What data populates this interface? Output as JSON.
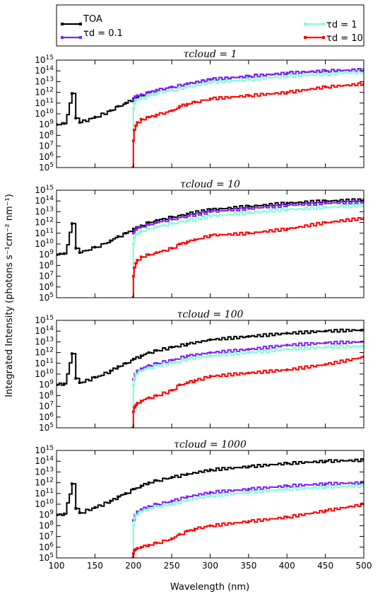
{
  "chart_data": {
    "type": "line",
    "xlabel": "Wavelength (nm)",
    "ylabel": "Integrated Intensity (photons s⁻¹cm⁻² nm⁻¹)",
    "xlim": [
      100,
      500
    ],
    "ylim_exp": [
      5,
      15
    ],
    "y_scale": "log",
    "x_ticks": [
      "100",
      "150",
      "200",
      "250",
      "300",
      "350",
      "400",
      "450",
      "500"
    ],
    "legend": {
      "placement": "top",
      "entries": [
        {
          "label": "TOA",
          "color": "#000000"
        },
        {
          "label": "τd = 0.1",
          "color": "#7f1fff"
        },
        {
          "label": "τd = 1",
          "color": "#7fffd4"
        },
        {
          "label": "τd = 10",
          "color": "#ff0000"
        }
      ]
    },
    "panels": [
      {
        "title": "τcloud = 1",
        "series": [
          {
            "color": "#000000",
            "x": [
              100,
              110,
              120,
              125,
              130,
              150,
              170,
              180,
              190,
              200,
              210,
              220,
              230,
              250,
              270,
              300,
              350,
              400,
              450,
              500
            ],
            "y": [
              9,
              9.1,
              11.9,
              9.6,
              9.2,
              9.7,
              10.3,
              10.7,
              11.0,
              11.4,
              11.7,
              12.0,
              12.2,
              12.5,
              12.8,
              13.2,
              13.5,
              13.8,
              14.0,
              14.1
            ]
          },
          {
            "color": "#7f1fff",
            "x": [
              200,
              202,
              205,
              210,
              220,
              230,
              250,
              270,
              300,
              350,
              400,
              450,
              500
            ],
            "y": [
              11.3,
              11.6,
              11.7,
              11.8,
              12.0,
              12.2,
              12.5,
              12.8,
              13.2,
              13.5,
              13.8,
              14.0,
              14.1
            ]
          },
          {
            "color": "#7fffd4",
            "x": [
              199.5,
              200,
              201,
              203,
              210,
              220,
              230,
              250,
              270,
              300,
              350,
              400,
              450,
              500
            ],
            "y": [
              5,
              10.5,
              11.0,
              11.3,
              11.5,
              11.7,
              11.9,
              12.2,
              12.5,
              12.9,
              13.2,
              13.5,
              13.7,
              13.9
            ]
          },
          {
            "color": "#ff0000",
            "x": [
              199.5,
              200,
              201,
              203,
              205,
              210,
              220,
              230,
              250,
              260,
              270,
              280,
              300,
              350,
              400,
              450,
              500
            ],
            "y": [
              5,
              7.5,
              8.5,
              8.9,
              9.2,
              9.5,
              9.7,
              9.9,
              10.3,
              10.7,
              10.9,
              11.1,
              11.4,
              11.7,
              12.0,
              12.5,
              12.8
            ]
          }
        ]
      },
      {
        "title": "τcloud = 10",
        "series": [
          {
            "color": "#000000",
            "x": [
              100,
              110,
              120,
              125,
              130,
              150,
              170,
              180,
              190,
              200,
              210,
              220,
              230,
              250,
              270,
              300,
              350,
              400,
              450,
              500
            ],
            "y": [
              9,
              9.1,
              11.9,
              9.6,
              9.2,
              9.7,
              10.3,
              10.7,
              11.0,
              11.4,
              11.7,
              12.0,
              12.2,
              12.5,
              12.8,
              13.2,
              13.5,
              13.8,
              14.0,
              14.1
            ]
          },
          {
            "color": "#7f1fff",
            "x": [
              200,
              202,
              205,
              210,
              220,
              230,
              250,
              270,
              300,
              350,
              400,
              450,
              500
            ],
            "y": [
              11.0,
              11.3,
              11.5,
              11.6,
              11.8,
              12.0,
              12.3,
              12.6,
              13.0,
              13.3,
              13.6,
              13.8,
              13.9
            ]
          },
          {
            "color": "#7fffd4",
            "x": [
              199.5,
              200,
              201,
              203,
              210,
              220,
              230,
              250,
              270,
              300,
              350,
              400,
              450,
              500
            ],
            "y": [
              5,
              10.0,
              10.6,
              10.9,
              11.2,
              11.4,
              11.6,
              11.9,
              12.2,
              12.6,
              12.9,
              13.2,
              13.4,
              13.6
            ]
          },
          {
            "color": "#ff0000",
            "x": [
              199.5,
              200,
              201,
              203,
              205,
              210,
              220,
              230,
              250,
              260,
              270,
              280,
              300,
              350,
              400,
              450,
              500
            ],
            "y": [
              5,
              7.0,
              7.8,
              8.2,
              8.5,
              8.8,
              9.0,
              9.2,
              9.6,
              10.0,
              10.2,
              10.4,
              10.8,
              11.0,
              11.4,
              12.0,
              12.4
            ]
          }
        ]
      },
      {
        "title": "τcloud = 100",
        "series": [
          {
            "color": "#000000",
            "x": [
              100,
              110,
              120,
              125,
              130,
              150,
              170,
              180,
              190,
              200,
              210,
              220,
              230,
              250,
              270,
              300,
              350,
              400,
              450,
              500
            ],
            "y": [
              9,
              9.1,
              11.9,
              9.6,
              9.2,
              9.7,
              10.3,
              10.7,
              11.0,
              11.4,
              11.7,
              12.0,
              12.2,
              12.5,
              12.8,
              13.2,
              13.5,
              13.8,
              14.0,
              14.1
            ]
          },
          {
            "color": "#7f1fff",
            "x": [
              200,
              202,
              205,
              210,
              220,
              230,
              250,
              270,
              300,
              350,
              400,
              450,
              500
            ],
            "y": [
              9.5,
              10.0,
              10.3,
              10.5,
              10.8,
              11.0,
              11.3,
              11.7,
              12.0,
              12.3,
              12.7,
              12.9,
              13.0
            ]
          },
          {
            "color": "#7fffd4",
            "x": [
              199.5,
              200,
              201,
              203,
              210,
              220,
              230,
              250,
              270,
              300,
              350,
              400,
              450,
              500
            ],
            "y": [
              5,
              9.0,
              9.6,
              10.0,
              10.3,
              10.6,
              10.8,
              11.0,
              11.4,
              11.7,
              12.0,
              12.3,
              12.5,
              12.6
            ]
          },
          {
            "color": "#ff0000",
            "x": [
              199.5,
              200,
              201,
              203,
              205,
              210,
              220,
              230,
              250,
              260,
              270,
              280,
              300,
              350,
              400,
              450,
              500
            ],
            "y": [
              5,
              6.5,
              6.9,
              7.1,
              7.3,
              7.5,
              7.8,
              8.0,
              8.5,
              9.0,
              9.2,
              9.4,
              9.8,
              10.1,
              10.4,
              10.9,
              11.6
            ]
          }
        ]
      },
      {
        "title": "τcloud = 1000",
        "series": [
          {
            "color": "#000000",
            "x": [
              100,
              110,
              120,
              125,
              130,
              150,
              170,
              180,
              190,
              200,
              210,
              220,
              230,
              250,
              270,
              300,
              350,
              400,
              450,
              500
            ],
            "y": [
              9,
              9.1,
              11.9,
              9.6,
              9.2,
              9.7,
              10.3,
              10.7,
              11.0,
              11.4,
              11.7,
              12.0,
              12.2,
              12.5,
              12.8,
              13.2,
              13.5,
              13.8,
              14.0,
              14.1
            ]
          },
          {
            "color": "#7f1fff",
            "x": [
              200,
              202,
              205,
              210,
              220,
              230,
              250,
              270,
              300,
              350,
              400,
              450,
              500
            ],
            "y": [
              8.5,
              9.0,
              9.3,
              9.5,
              9.8,
              10.0,
              10.3,
              10.7,
              11.1,
              11.4,
              11.7,
              11.9,
              12.0
            ]
          },
          {
            "color": "#7fffd4",
            "x": [
              199.5,
              200,
              201,
              203,
              210,
              220,
              230,
              250,
              270,
              300,
              350,
              400,
              450,
              500
            ],
            "y": [
              5,
              8.0,
              8.7,
              9.0,
              9.3,
              9.6,
              9.8,
              10.0,
              10.4,
              10.8,
              11.1,
              11.4,
              11.6,
              11.7
            ]
          },
          {
            "color": "#ff0000",
            "x": [
              199.5,
              200,
              201,
              203,
              205,
              210,
              220,
              230,
              250,
              260,
              270,
              280,
              300,
              350,
              400,
              450,
              500
            ],
            "y": [
              5,
              5.4,
              5.7,
              5.8,
              5.9,
              6.0,
              6.2,
              6.4,
              6.8,
              7.2,
              7.5,
              7.7,
              8.0,
              8.4,
              8.8,
              9.4,
              10.0
            ]
          }
        ]
      }
    ]
  }
}
